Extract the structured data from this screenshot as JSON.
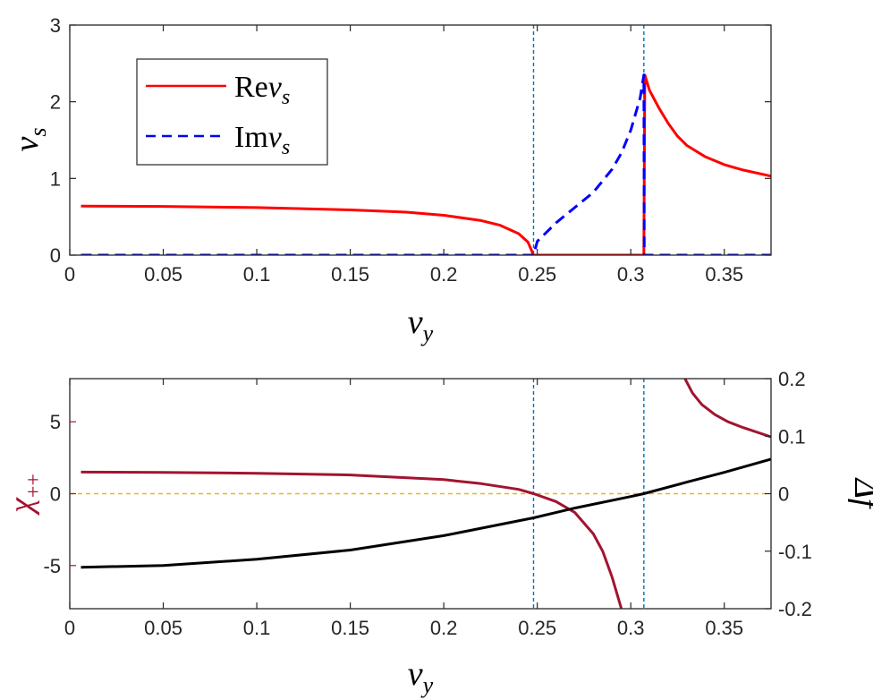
{
  "chart_data": [
    {
      "type": "line",
      "xlabel": "v",
      "xlabel_sub": "y",
      "ylabel": "v",
      "ylabel_sub": "s",
      "xlim": [
        0,
        0.375
      ],
      "ylim": [
        0,
        3
      ],
      "xticks": [
        0,
        0.05,
        0.1,
        0.15,
        0.2,
        0.25,
        0.3,
        0.35
      ],
      "xtick_labels": [
        "0",
        "0.05",
        "0.1",
        "0.15",
        "0.2",
        "0.25",
        "0.3",
        "0.35"
      ],
      "yticks": [
        0,
        1,
        2,
        3
      ],
      "ytick_labels": [
        "0",
        "1",
        "2",
        "3"
      ],
      "vlines": [
        0.248,
        0.307
      ],
      "legend": {
        "position": "top-left"
      },
      "series": [
        {
          "name": "Rev_s",
          "legend_prefix": "Re",
          "legend_var": "v",
          "legend_sub": "s",
          "color": "#ff0000",
          "style": "solid",
          "x": [
            0.006,
            0.05,
            0.1,
            0.15,
            0.18,
            0.2,
            0.22,
            0.23,
            0.24,
            0.245,
            0.248,
            0.25,
            0.27,
            0.29,
            0.307,
            0.3075,
            0.31,
            0.315,
            0.32,
            0.325,
            0.33,
            0.34,
            0.35,
            0.36,
            0.375
          ],
          "y": [
            0.64,
            0.635,
            0.62,
            0.59,
            0.56,
            0.52,
            0.45,
            0.39,
            0.28,
            0.17,
            0.0,
            0.0,
            0.0,
            0.0,
            0.0,
            2.35,
            2.15,
            1.92,
            1.72,
            1.55,
            1.43,
            1.28,
            1.18,
            1.11,
            1.03
          ]
        },
        {
          "name": "Imv_s",
          "legend_prefix": "Im",
          "legend_var": "v",
          "legend_sub": "s",
          "color": "#0000ff",
          "style": "dashed",
          "x": [
            0.006,
            0.248,
            0.25,
            0.26,
            0.27,
            0.28,
            0.29,
            0.295,
            0.3,
            0.305,
            0.307,
            0.3072,
            0.375
          ],
          "y": [
            0.0,
            0.0,
            0.18,
            0.42,
            0.62,
            0.82,
            1.12,
            1.33,
            1.63,
            2.05,
            2.35,
            0.0,
            0.0
          ]
        }
      ]
    },
    {
      "type": "line",
      "xlabel": "v",
      "xlabel_sub": "y",
      "ylabel_left": "χ",
      "ylabel_left_sub": "++",
      "ylabel_right": "Δf",
      "xlim": [
        0,
        0.375
      ],
      "ylim_left": [
        -8,
        8
      ],
      "ylim_right": [
        -0.2,
        0.2
      ],
      "xticks": [
        0,
        0.05,
        0.1,
        0.15,
        0.2,
        0.25,
        0.3,
        0.35
      ],
      "xtick_labels": [
        "0",
        "0.05",
        "0.1",
        "0.15",
        "0.2",
        "0.25",
        "0.3",
        "0.35"
      ],
      "yticks_left": [
        -5,
        0,
        5
      ],
      "ytick_labels_left": [
        "-5",
        "0",
        "5"
      ],
      "yticks_right": [
        -0.2,
        -0.1,
        0,
        0.1,
        0.2
      ],
      "ytick_labels_right": [
        "-0.2",
        "-0.1",
        "0",
        "0.1",
        "0.2"
      ],
      "vlines": [
        0.248,
        0.307
      ],
      "hline": 0,
      "colors": {
        "left_axis": "#a2142f",
        "chi": "#a2142f",
        "delta_f": "#000000",
        "vline": "#0072bd",
        "hline": "#edb120"
      },
      "series": [
        {
          "name": "chi_pp",
          "axis": "left",
          "color": "#a2142f",
          "segments": [
            {
              "x": [
                0.006,
                0.05,
                0.1,
                0.15,
                0.2,
                0.22,
                0.24,
                0.248,
                0.26,
                0.27,
                0.28,
                0.285,
                0.29,
                0.295
              ],
              "y": [
                1.5,
                1.48,
                1.42,
                1.3,
                0.98,
                0.7,
                0.3,
                0.0,
                -0.55,
                -1.3,
                -2.8,
                -4.0,
                -5.8,
                -8.0
              ]
            },
            {
              "x": [
                0.329,
                0.333,
                0.338,
                0.345,
                0.352,
                0.36,
                0.368,
                0.375
              ],
              "y": [
                8.0,
                7.0,
                6.2,
                5.5,
                5.0,
                4.6,
                4.25,
                3.95
              ]
            }
          ]
        },
        {
          "name": "delta_f",
          "axis": "right",
          "color": "#000000",
          "x": [
            0.006,
            0.05,
            0.1,
            0.15,
            0.2,
            0.248,
            0.27,
            0.3,
            0.307,
            0.33,
            0.35,
            0.375
          ],
          "y": [
            -0.128,
            -0.125,
            -0.114,
            -0.098,
            -0.073,
            -0.042,
            -0.025,
            -0.005,
            0.0,
            0.02,
            0.037,
            0.06
          ]
        }
      ]
    }
  ]
}
